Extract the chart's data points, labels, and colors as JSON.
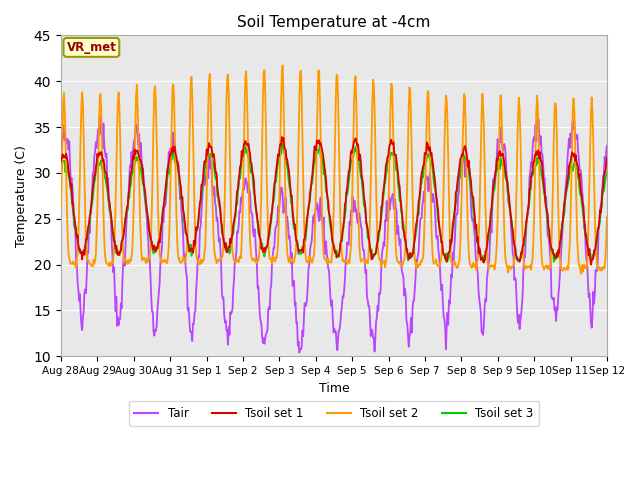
{
  "title": "Soil Temperature at -4cm",
  "xlabel": "Time",
  "ylabel": "Temperature (C)",
  "ylim": [
    10,
    45
  ],
  "yticks": [
    10,
    15,
    20,
    25,
    30,
    35,
    40,
    45
  ],
  "xtick_labels": [
    "Aug 28",
    "Aug 29",
    "Aug 30",
    "Aug 31",
    "Sep 1",
    "Sep 2",
    "Sep 3",
    "Sep 4",
    "Sep 5",
    "Sep 6",
    "Sep 7",
    "Sep 8",
    "Sep 9",
    "Sep 10",
    "Sep 11",
    "Sep 12"
  ],
  "colors": {
    "Tair": "#BB44FF",
    "Tsoil_set1": "#DD0000",
    "Tsoil_set2": "#FF9900",
    "Tsoil_set3": "#00CC00"
  },
  "legend_labels": [
    "Tair",
    "Tsoil set 1",
    "Tsoil set 2",
    "Tsoil set 3"
  ],
  "annotation_text": "VR_met",
  "annotation_color": "#990000",
  "annotation_bg": "#FFFFCC",
  "annotation_edge": "#999900",
  "background_gray": "#E8E8E8",
  "n_days": 15,
  "pts_per_day": 48
}
